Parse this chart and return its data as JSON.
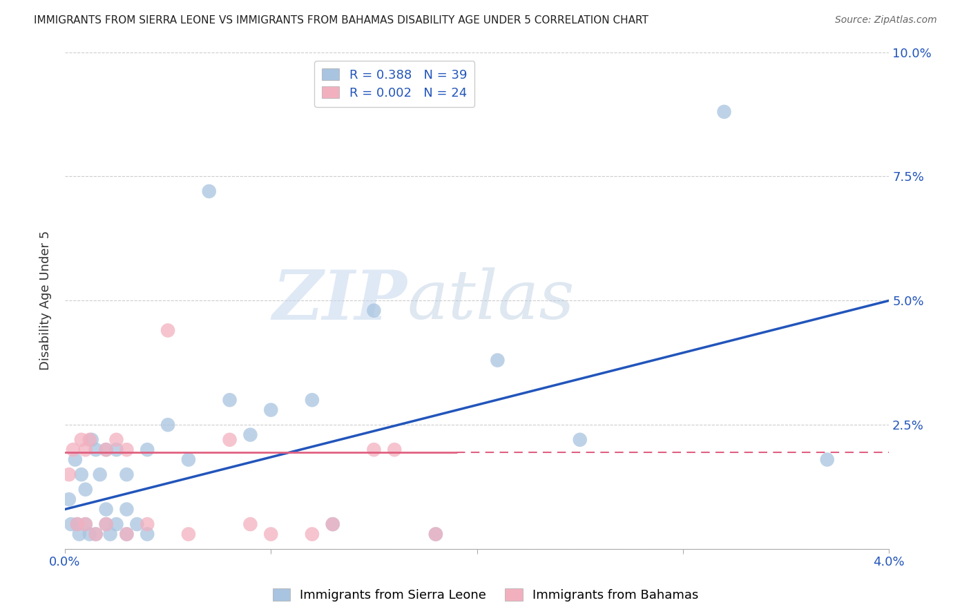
{
  "title": "IMMIGRANTS FROM SIERRA LEONE VS IMMIGRANTS FROM BAHAMAS DISABILITY AGE UNDER 5 CORRELATION CHART",
  "source": "Source: ZipAtlas.com",
  "ylabel": "Disability Age Under 5",
  "xlim": [
    0.0,
    0.04
  ],
  "ylim": [
    0.0,
    0.1
  ],
  "xticks": [
    0.0,
    0.01,
    0.02,
    0.03,
    0.04
  ],
  "yticks": [
    0.0,
    0.025,
    0.05,
    0.075,
    0.1
  ],
  "xticklabels_show": [
    "0.0%",
    "4.0%"
  ],
  "xticklabels_vals": [
    0.0,
    0.04
  ],
  "yticklabels": [
    "",
    "2.5%",
    "5.0%",
    "7.5%",
    "10.0%"
  ],
  "sierra_leone_R": 0.388,
  "sierra_leone_N": 39,
  "bahamas_R": 0.002,
  "bahamas_N": 24,
  "sierra_leone_color": "#a8c4e0",
  "bahamas_color": "#f2b0bf",
  "trendline_sierra_color": "#2255bb",
  "trendline_bahamas_color": "#e06080",
  "legend_label_sierra": "Immigrants from Sierra Leone",
  "legend_label_bahamas": "Immigrants from Bahamas",
  "sierra_leone_x": [
    0.0002,
    0.0003,
    0.0005,
    0.0006,
    0.0007,
    0.0008,
    0.001,
    0.001,
    0.0012,
    0.0013,
    0.0015,
    0.0015,
    0.0017,
    0.002,
    0.002,
    0.002,
    0.0022,
    0.0025,
    0.0025,
    0.003,
    0.003,
    0.003,
    0.0035,
    0.004,
    0.004,
    0.005,
    0.006,
    0.007,
    0.008,
    0.009,
    0.01,
    0.012,
    0.013,
    0.015,
    0.018,
    0.021,
    0.025,
    0.032,
    0.037
  ],
  "sierra_leone_y": [
    0.01,
    0.005,
    0.018,
    0.005,
    0.003,
    0.015,
    0.005,
    0.012,
    0.003,
    0.022,
    0.02,
    0.003,
    0.015,
    0.005,
    0.008,
    0.02,
    0.003,
    0.005,
    0.02,
    0.003,
    0.008,
    0.015,
    0.005,
    0.003,
    0.02,
    0.025,
    0.018,
    0.072,
    0.03,
    0.023,
    0.028,
    0.03,
    0.005,
    0.048,
    0.003,
    0.038,
    0.022,
    0.088,
    0.018
  ],
  "bahamas_x": [
    0.0002,
    0.0004,
    0.0006,
    0.0008,
    0.001,
    0.001,
    0.0012,
    0.0015,
    0.002,
    0.002,
    0.0025,
    0.003,
    0.003,
    0.004,
    0.005,
    0.006,
    0.008,
    0.009,
    0.01,
    0.012,
    0.013,
    0.015,
    0.016,
    0.018
  ],
  "bahamas_y": [
    0.015,
    0.02,
    0.005,
    0.022,
    0.005,
    0.02,
    0.022,
    0.003,
    0.005,
    0.02,
    0.022,
    0.003,
    0.02,
    0.005,
    0.044,
    0.003,
    0.022,
    0.005,
    0.003,
    0.003,
    0.005,
    0.02,
    0.02,
    0.003
  ],
  "watermark_zip": "ZIP",
  "watermark_atlas": "atlas",
  "background_color": "#ffffff",
  "grid_color": "#cccccc",
  "trendline_sl_x0": 0.0,
  "trendline_sl_y0": 0.008,
  "trendline_sl_x1": 0.04,
  "trendline_sl_y1": 0.05,
  "trendline_bah_x0": 0.0,
  "trendline_bah_y0": 0.0195,
  "trendline_bah_x1": 0.019,
  "trendline_bah_y1": 0.0195
}
